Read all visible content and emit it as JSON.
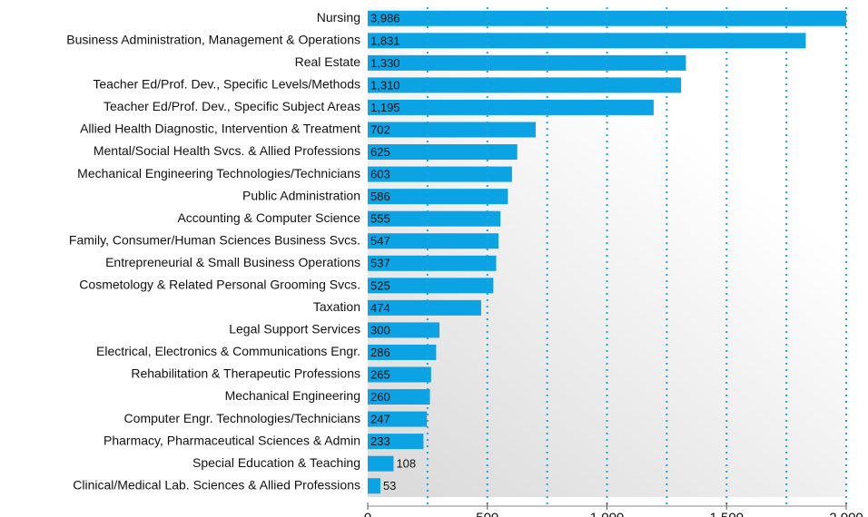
{
  "chart_data": {
    "type": "barh",
    "categories": [
      "Nursing",
      "Business Administration, Management & Operations",
      "Real Estate",
      "Teacher Ed/Prof. Dev., Specific Levels/Methods",
      "Teacher Ed/Prof. Dev., Specific Subject Areas",
      "Allied Health Diagnostic, Intervention & Treatment",
      "Mental/Social Health Svcs. & Allied Professions",
      "Mechanical Engineering Technologies/Technicians",
      "Public Administration",
      "Accounting & Computer Science",
      "Family, Consumer/Human Sciences Business Svcs.",
      "Entrepreneurial & Small Business Operations",
      "Cosmetology & Related Personal Grooming Svcs.",
      "Taxation",
      "Legal Support Services",
      "Electrical, Electronics & Communications Engr.",
      "Rehabilitation & Therapeutic Professions",
      "Mechanical Engineering",
      "Computer Engr. Technologies/Technicians",
      "Pharmacy, Pharmaceutical Sciences & Admin",
      "Special Education & Teaching",
      "Clinical/Medical Lab. Sciences & Allied Professions"
    ],
    "values": [
      3986,
      1831,
      1330,
      1310,
      1195,
      702,
      625,
      603,
      586,
      555,
      547,
      537,
      525,
      474,
      300,
      286,
      265,
      260,
      247,
      233,
      108,
      53
    ],
    "value_labels": [
      "3,986",
      "1,831",
      "1,330",
      "1,310",
      "1,195",
      "702",
      "625",
      "603",
      "586",
      "555",
      "547",
      "537",
      "525",
      "474",
      "300",
      "286",
      "265",
      "260",
      "247",
      "233",
      "108",
      "53"
    ],
    "color": "#0ba3e4",
    "xlim": [
      0,
      2000
    ],
    "xticks": [
      0,
      500,
      {
        "value": 1000,
        "label": "1.000"
      },
      {
        "value": 1500,
        "label": "1.500"
      },
      {
        "value": 2000,
        "label": "2.000"
      }
    ],
    "xgrid": [
      250,
      500,
      750,
      1000,
      1250,
      1500,
      1750,
      2000
    ],
    "grid": true
  }
}
